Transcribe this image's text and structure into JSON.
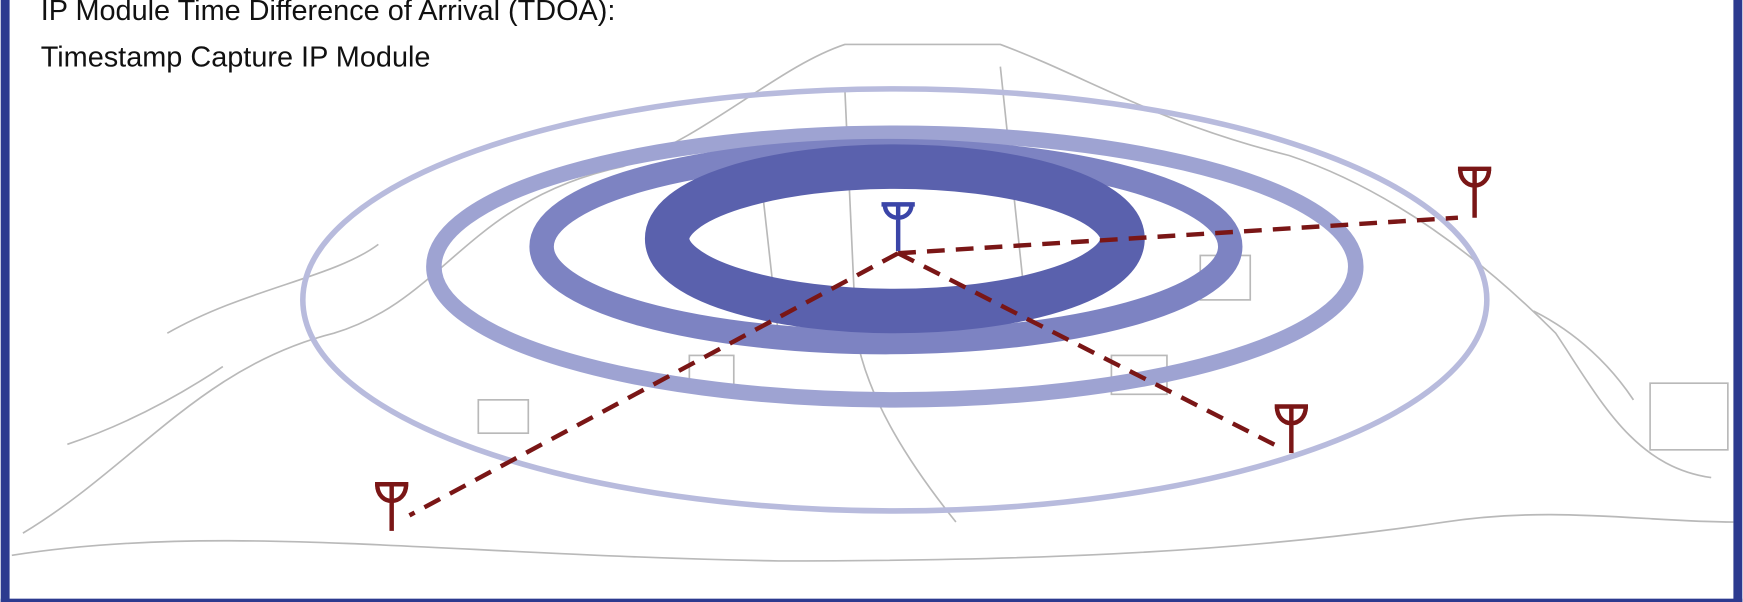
{
  "title": {
    "line1": "IP Module Time Difference of Arrival (TDOA):",
    "line2": "Timestamp Capture IP Module"
  }
}
